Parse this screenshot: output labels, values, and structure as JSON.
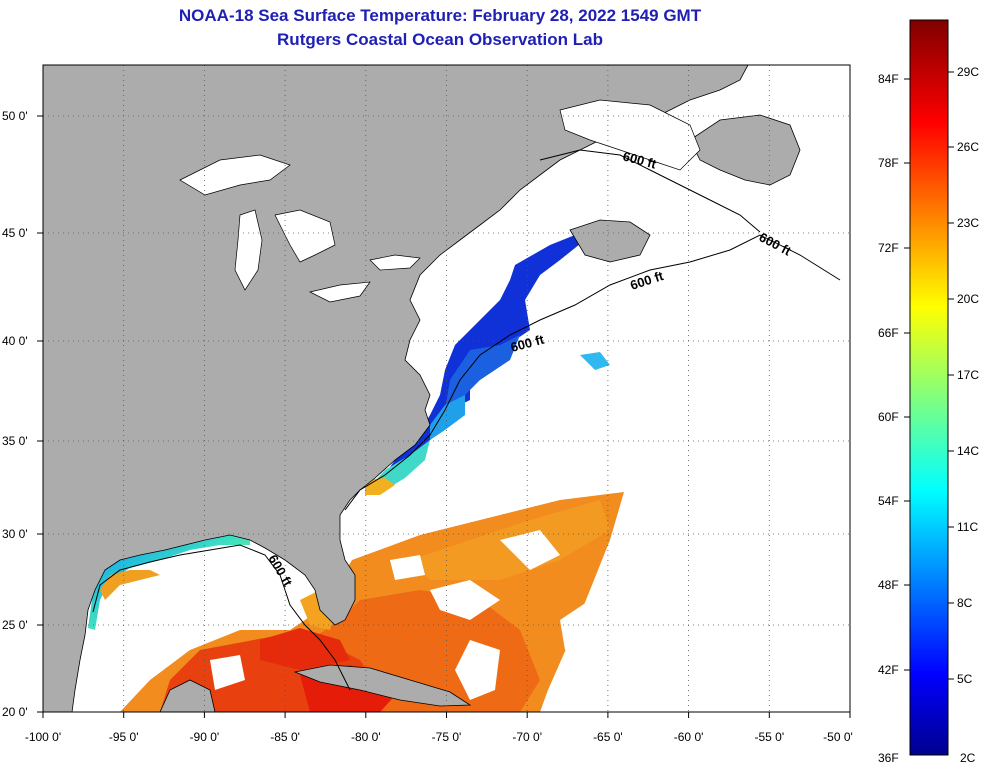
{
  "title_line1": "NOAA-18 Sea Surface Temperature:  February 28, 2022 1549 GMT",
  "title_line2": "Rutgers Coastal Ocean Observation Lab",
  "map": {
    "lon_ticks": [
      "-100 0'",
      "-95 0'",
      "-90 0'",
      "-85 0'",
      "-80 0'",
      "-75 0'",
      "-70 0'",
      "-65 0'",
      "-60 0'",
      "-55 0'",
      "-50 0'"
    ],
    "lat_ticks": [
      "20 0'",
      "25 0'",
      "30 0'",
      "35 0'",
      "40 0'",
      "45 0'",
      "50 0'"
    ],
    "contour_labels": [
      "600 ft",
      "600 ft",
      "600 ft",
      "600 ft",
      "600 ft"
    ]
  },
  "colorbar": {
    "f_labels": [
      "84F",
      "78F",
      "72F",
      "66F",
      "60F",
      "54F",
      "48F",
      "42F",
      "36F"
    ],
    "c_labels": [
      "29C",
      "26C",
      "23C",
      "20C",
      "17C",
      "14C",
      "11C",
      "8C",
      "5C",
      "2C"
    ]
  },
  "colors": {
    "land": "#acacac",
    "ocean_nodata": "#ffffff",
    "title": "#1f1fb4"
  }
}
